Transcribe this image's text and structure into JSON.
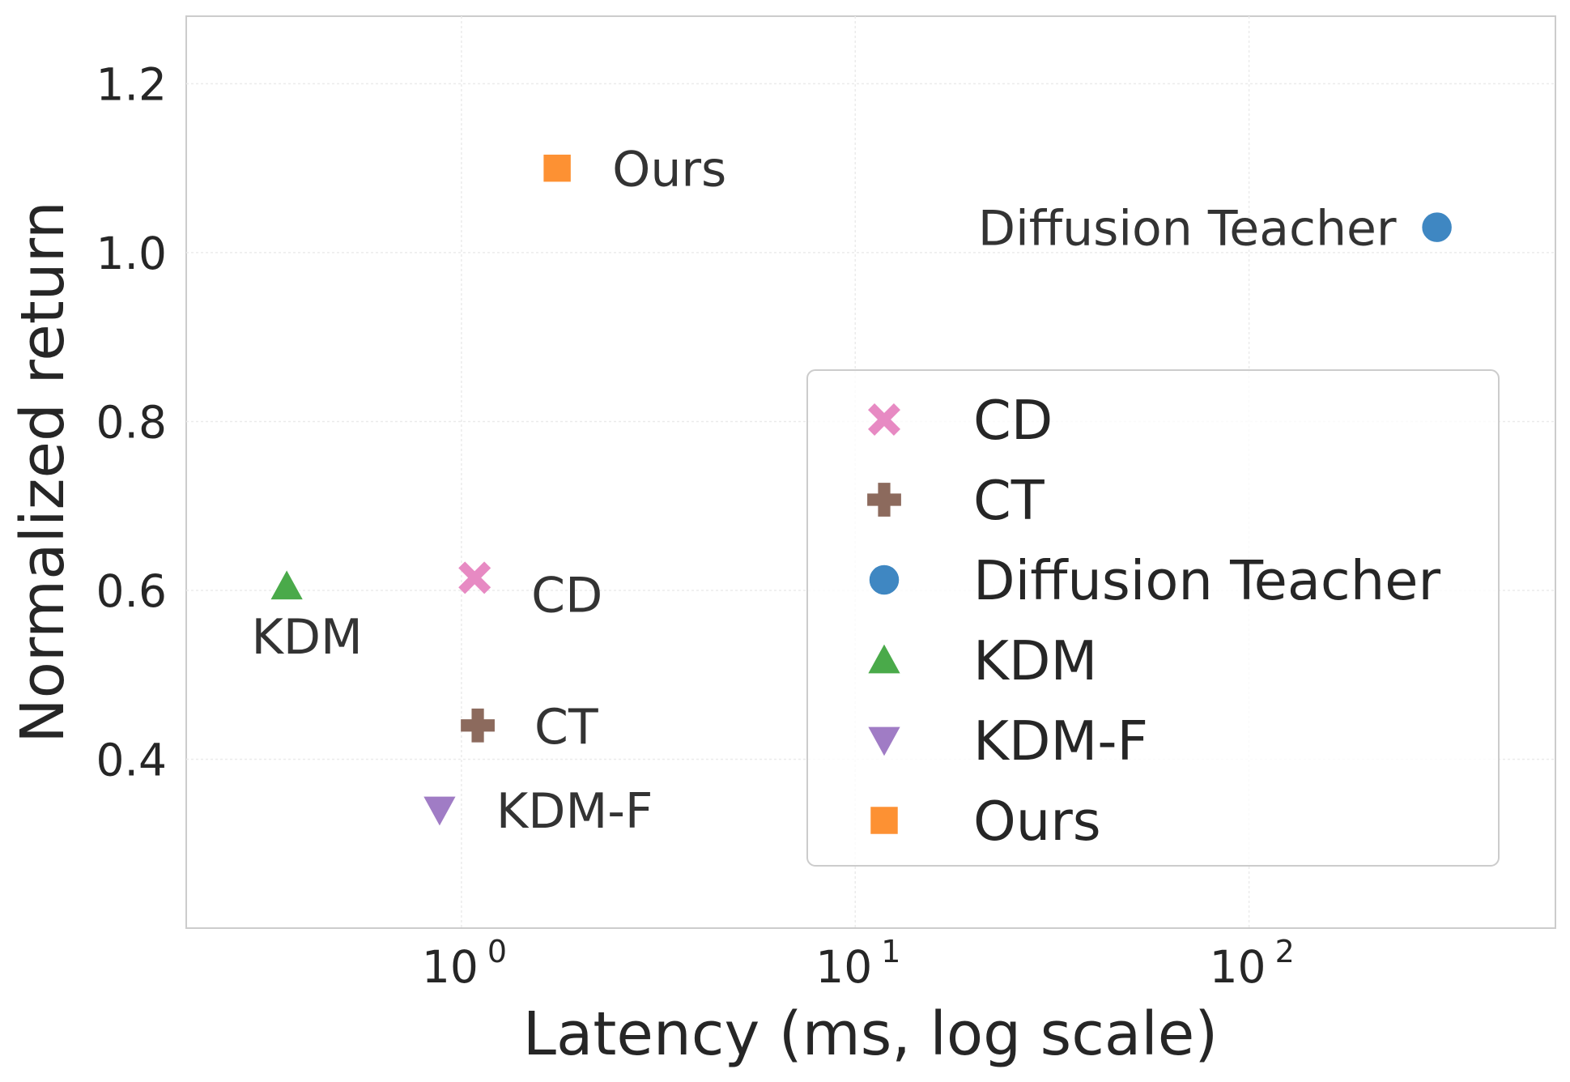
{
  "chart_data": {
    "type": "scatter",
    "xlabel": "Latency (ms, log scale)",
    "ylabel": "Normalized return",
    "xscale": "log",
    "xlim": [
      0.2,
      600
    ],
    "ylim": [
      0.2,
      1.28
    ],
    "yticks": [
      0.4,
      0.6,
      0.8,
      1.0,
      1.2
    ],
    "ytick_labels": [
      "0.4",
      "0.6",
      "0.8",
      "1.0",
      "1.2"
    ],
    "xticks": [
      1,
      10,
      100
    ],
    "xtick_labels": [
      {
        "base": "10",
        "exp": "0"
      },
      {
        "base": "10",
        "exp": "1"
      },
      {
        "base": "10",
        "exp": "2"
      }
    ],
    "grid": true,
    "legend_position": "lower-right",
    "series": [
      {
        "name": "CD",
        "x": 1.08,
        "y": 0.615,
        "marker": "x",
        "color": "#e78ac3",
        "label": "CD"
      },
      {
        "name": "CT",
        "x": 1.1,
        "y": 0.44,
        "marker": "plus",
        "color": "#8c6a5d",
        "label": "CT"
      },
      {
        "name": "Diffusion Teacher",
        "x": 300,
        "y": 1.03,
        "marker": "circle",
        "color": "#3f87c2",
        "label": "Diffusion Teacher"
      },
      {
        "name": "KDM",
        "x": 0.36,
        "y": 0.605,
        "marker": "triangle-up",
        "color": "#4aaa4a",
        "label": "KDM"
      },
      {
        "name": "KDM-F",
        "x": 0.88,
        "y": 0.34,
        "marker": "triangle-down",
        "color": "#a07cc5",
        "label": "KDM-F"
      },
      {
        "name": "Ours",
        "x": 1.75,
        "y": 1.1,
        "marker": "square",
        "color": "#fd9133",
        "label": "Ours"
      }
    ]
  }
}
